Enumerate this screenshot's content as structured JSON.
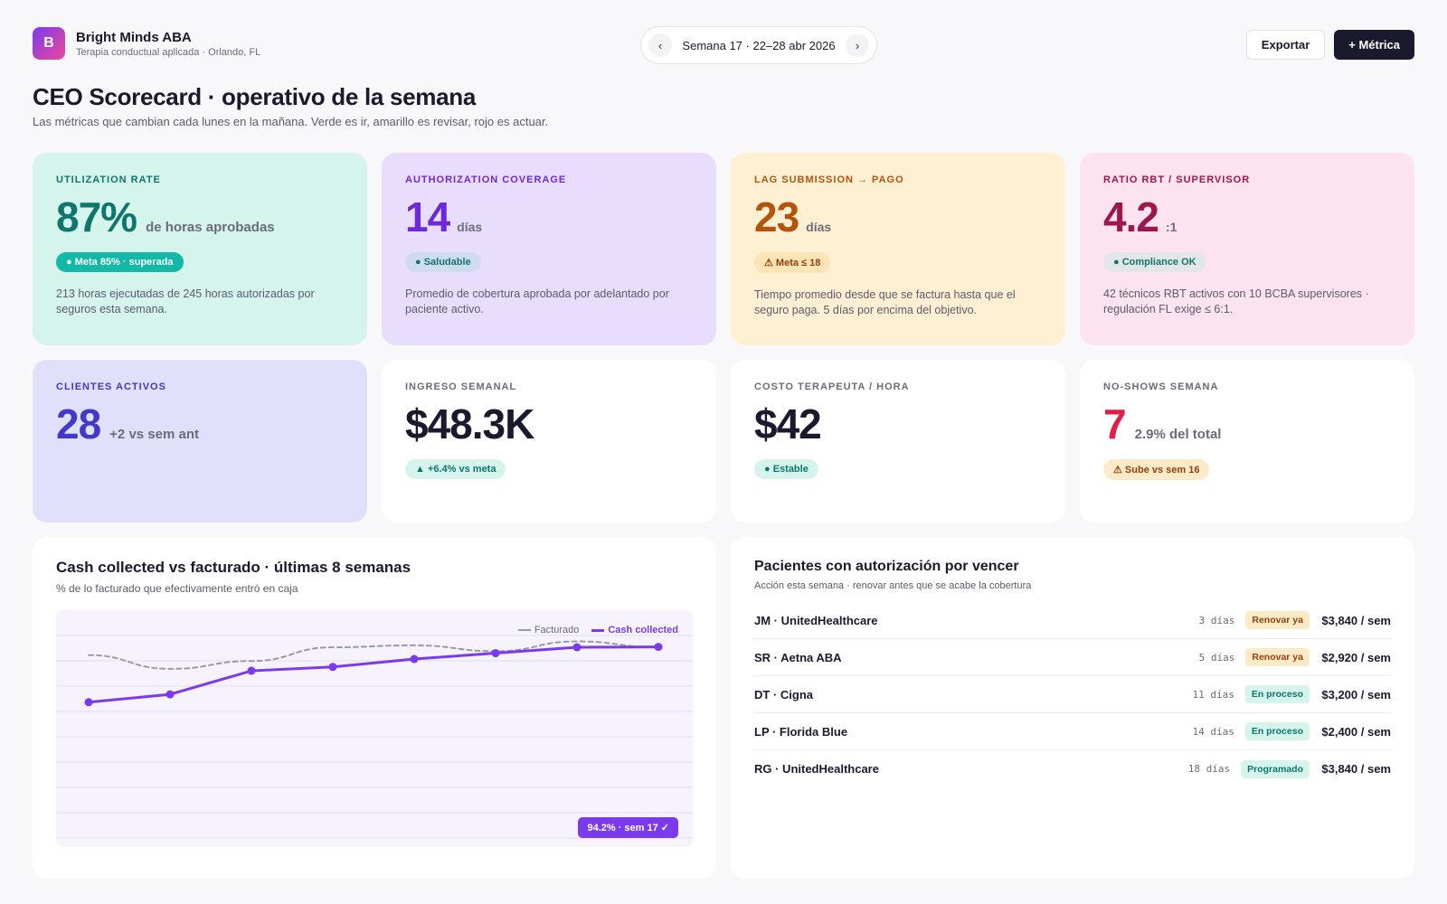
{
  "brand": {
    "logo_letter": "B",
    "name": "Bright Minds ABA",
    "subtitle": "Terapia conductual aplicada · Orlando, FL"
  },
  "week": {
    "prev_icon": "chevron-left-icon",
    "next_icon": "chevron-right-icon",
    "prev_glyph": "‹",
    "next_glyph": "›",
    "label": "Semana 17 · 22–28 abr 2026"
  },
  "actions": {
    "export_label": "Exportar",
    "add_metric_label": "+ Métrica"
  },
  "page": {
    "title": "CEO Scorecard · operativo de la semana",
    "subtitle": "Las métricas que cambian cada lunes en la mañana. Verde es ir, amarillo es revisar, rojo es actuar."
  },
  "cards": {
    "utilization": {
      "label": "UTILIZATION RATE",
      "value": "87%",
      "unit": "de horas aprobadas",
      "pill": "● Meta 85% · superada",
      "desc": "213 horas ejecutadas de 245 horas autorizadas por seguros esta semana.",
      "color": "#0f766e"
    },
    "authorization": {
      "label": "AUTHORIZATION COVERAGE",
      "value": "14",
      "unit": "días",
      "pill": "● Saludable",
      "desc": "Promedio de cobertura aprobada por adelantado por paciente activo.",
      "color": "#6d28d9"
    },
    "lag": {
      "label": "LAG SUBMISSION → PAGO",
      "value": "23",
      "unit": "días",
      "pill": "⚠ Meta ≤ 18",
      "desc": "Tiempo promedio desde que se factura hasta que el seguro paga. 5 días por encima del objetivo.",
      "color": "#b45309"
    },
    "ratio": {
      "label": "RATIO RBT / SUPERVISOR",
      "value": "4.2",
      "unit": ":1",
      "pill": "● Compliance OK",
      "desc": "42 técnicos RBT activos con 10 BCBA supervisores · regulación FL exige ≤ 6:1.",
      "color": "#9d174d"
    },
    "clients": {
      "label": "CLIENTES ACTIVOS",
      "value": "28",
      "unit": "+2 vs sem ant",
      "color": "#4338ca"
    },
    "revenue": {
      "label": "INGRESO SEMANAL",
      "value": "$48.3K",
      "pill": "▲ +6.4% vs meta"
    },
    "cost": {
      "label": "COSTO TERAPEUTA / HORA",
      "value": "$42",
      "pill": "● Estable"
    },
    "noshows": {
      "label": "NO-SHOWS SEMANA",
      "value": "7",
      "unit": "2.9% del total",
      "pill": "⚠ Sube vs sem 16",
      "color": "#e11d48"
    }
  },
  "chart": {
    "title": "Cash collected vs facturado · últimas 8 semanas",
    "subtitle": "% de lo facturado que efectivamente entró en caja",
    "legend_billed": "Facturado",
    "legend_cash": "Cash collected",
    "badge": "94.2% · sem 17 ✓",
    "color_billed": "#9a9aa8",
    "color_cash": "#7c3aed"
  },
  "chart_data": {
    "type": "line",
    "x": [
      10,
      11,
      12,
      13,
      14,
      15,
      16,
      17
    ],
    "ylim": [
      0,
      100
    ],
    "series": [
      {
        "name": "Facturado",
        "values": [
          90,
          83,
          87,
          94,
          95,
          92,
          97,
          94
        ],
        "style": "dashed"
      },
      {
        "name": "Cash collected",
        "values": [
          66,
          70,
          82,
          84,
          88,
          91,
          94,
          94.2
        ]
      }
    ]
  },
  "auth": {
    "title": "Pacientes con autorización por vencer",
    "subtitle": "Acción esta semana · renovar antes que se acabe la cobertura",
    "rows": [
      {
        "name": "JM · UnitedHealthcare",
        "days": "3 días",
        "status": "Renovar ya",
        "amount": "$3,840 / sem"
      },
      {
        "name": "SR · Aetna ABA",
        "days": "5 días",
        "status": "Renovar ya",
        "amount": "$2,920 / sem"
      },
      {
        "name": "DT · Cigna",
        "days": "11 días",
        "status": "En proceso",
        "amount": "$3,200 / sem"
      },
      {
        "name": "LP · Florida Blue",
        "days": "14 días",
        "status": "En proceso",
        "amount": "$2,400 / sem"
      },
      {
        "name": "RG · UnitedHealthcare",
        "days": "18 días",
        "status": "Programado",
        "amount": "$3,840 / sem"
      }
    ],
    "status_colors": {
      "Renovar ya": {
        "bg": "#fdebc8",
        "fg": "#92400e"
      },
      "En proceso": {
        "bg": "#d5f5ec",
        "fg": "#0f766e"
      },
      "Programado": {
        "bg": "#d5f5ec",
        "fg": "#0f766e"
      }
    }
  }
}
